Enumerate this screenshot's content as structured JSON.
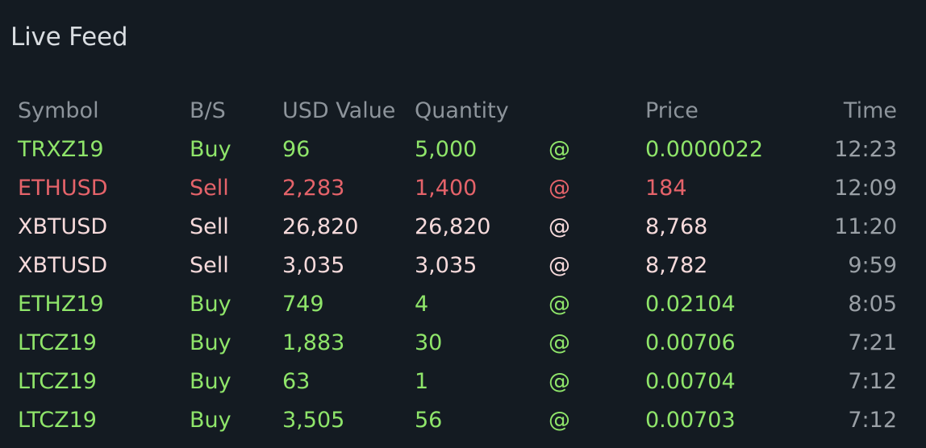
{
  "title": "Live Feed",
  "colors": {
    "background": "#141b22",
    "buy": "#8fe56a",
    "sell_major": "#e5636a",
    "sell_minor": "#f6dadb",
    "header": "#8d949b",
    "time": "#9aa0a6"
  },
  "table": {
    "headers": {
      "symbol": "Symbol",
      "side": "B/S",
      "usd": "USD Value",
      "qty": "Quantity",
      "at": "",
      "price": "Price",
      "time": "Time"
    },
    "rows": [
      {
        "symbol": "TRXZ19",
        "side": "Buy",
        "usd": "96",
        "qty": "5,000",
        "at": "@",
        "price": "0.0000022",
        "time": "12:23",
        "tone": "buy"
      },
      {
        "symbol": "ETHUSD",
        "side": "Sell",
        "usd": "2,283",
        "qty": "1,400",
        "at": "@",
        "price": "184",
        "time": "12:09",
        "tone": "sell-red"
      },
      {
        "symbol": "XBTUSD",
        "side": "Sell",
        "usd": "26,820",
        "qty": "26,820",
        "at": "@",
        "price": "8,768",
        "time": "11:20",
        "tone": "sell-pink"
      },
      {
        "symbol": "XBTUSD",
        "side": "Sell",
        "usd": "3,035",
        "qty": "3,035",
        "at": "@",
        "price": "8,782",
        "time": "9:59",
        "tone": "sell-pink"
      },
      {
        "symbol": "ETHZ19",
        "side": "Buy",
        "usd": "749",
        "qty": "4",
        "at": "@",
        "price": "0.02104",
        "time": "8:05",
        "tone": "buy"
      },
      {
        "symbol": "LTCZ19",
        "side": "Buy",
        "usd": "1,883",
        "qty": "30",
        "at": "@",
        "price": "0.00706",
        "time": "7:21",
        "tone": "buy"
      },
      {
        "symbol": "LTCZ19",
        "side": "Buy",
        "usd": "63",
        "qty": "1",
        "at": "@",
        "price": "0.00704",
        "time": "7:12",
        "tone": "buy"
      },
      {
        "symbol": "LTCZ19",
        "side": "Buy",
        "usd": "3,505",
        "qty": "56",
        "at": "@",
        "price": "0.00703",
        "time": "7:12",
        "tone": "buy"
      }
    ]
  }
}
